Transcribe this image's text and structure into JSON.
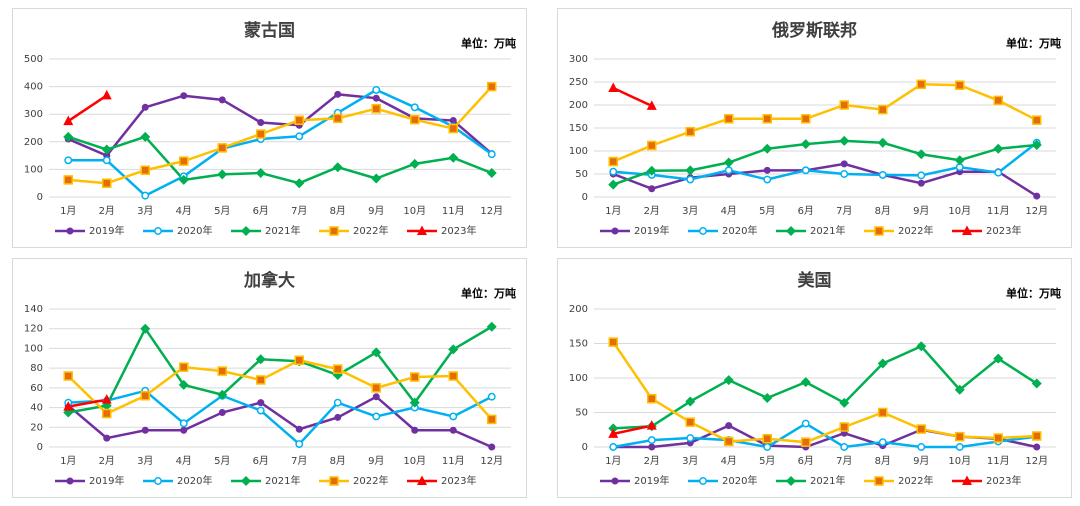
{
  "chart_data": [
    {
      "type": "line",
      "title": "蒙古国",
      "annotation": "单位：万吨",
      "categories": [
        "1月",
        "2月",
        "3月",
        "4月",
        "5月",
        "6月",
        "7月",
        "8月",
        "9月",
        "10月",
        "11月",
        "12月"
      ],
      "ylim": [
        0,
        500
      ],
      "yticks": [
        0,
        100,
        200,
        300,
        400,
        500
      ],
      "grid": true,
      "series": [
        {
          "name": "2019年",
          "color": "#7030a0",
          "marker": "circle",
          "values": [
            210,
            150,
            325,
            367,
            352,
            270,
            260,
            372,
            358,
            285,
            277,
            157
          ]
        },
        {
          "name": "2020年",
          "color": "#00b0f0",
          "marker": "open-circle",
          "values": [
            133,
            133,
            5,
            75,
            175,
            210,
            220,
            305,
            388,
            325,
            255,
            155
          ]
        },
        {
          "name": "2021年",
          "color": "#00b050",
          "marker": "diamond",
          "values": [
            218,
            172,
            218,
            62,
            82,
            87,
            50,
            108,
            67,
            120,
            142,
            87
          ]
        },
        {
          "name": "2022年",
          "color": "#ffc000",
          "marker": "square",
          "values": [
            62,
            50,
            97,
            130,
            178,
            228,
            278,
            285,
            320,
            280,
            248,
            400
          ]
        },
        {
          "name": "2023年",
          "color": "#ff0000",
          "marker": "triangle",
          "values": [
            275,
            368,
            null,
            null,
            null,
            null,
            null,
            null,
            null,
            null,
            null,
            null
          ]
        }
      ]
    },
    {
      "type": "line",
      "title": "俄罗斯联邦",
      "annotation": "单位：万吨",
      "categories": [
        "1月",
        "2月",
        "3月",
        "4月",
        "5月",
        "6月",
        "7月",
        "8月",
        "9月",
        "10月",
        "11月",
        "12月"
      ],
      "ylim": [
        0,
        300
      ],
      "yticks": [
        0,
        50,
        100,
        150,
        200,
        250,
        300
      ],
      "grid": true,
      "series": [
        {
          "name": "2019年",
          "color": "#7030a0",
          "marker": "circle",
          "values": [
            50,
            18,
            42,
            50,
            58,
            58,
            72,
            48,
            30,
            55,
            55,
            2
          ]
        },
        {
          "name": "2020年",
          "color": "#00b0f0",
          "marker": "open-circle",
          "values": [
            55,
            48,
            38,
            58,
            38,
            58,
            50,
            48,
            47,
            65,
            53,
            118
          ]
        },
        {
          "name": "2021年",
          "color": "#00b050",
          "marker": "diamond",
          "values": [
            27,
            57,
            58,
            75,
            105,
            115,
            122,
            118,
            93,
            80,
            105,
            113
          ]
        },
        {
          "name": "2022年",
          "color": "#ffc000",
          "marker": "square",
          "values": [
            77,
            112,
            142,
            170,
            170,
            170,
            200,
            190,
            245,
            243,
            210,
            167
          ]
        },
        {
          "name": "2023年",
          "color": "#ff0000",
          "marker": "triangle",
          "values": [
            237,
            198,
            null,
            null,
            null,
            null,
            null,
            null,
            null,
            null,
            null,
            null
          ]
        }
      ]
    },
    {
      "type": "line",
      "title": "加拿大",
      "annotation": "单位：万吨",
      "categories": [
        "1月",
        "2月",
        "3月",
        "4月",
        "5月",
        "6月",
        "7月",
        "8月",
        "9月",
        "10月",
        "11月",
        "12月"
      ],
      "ylim": [
        0,
        140
      ],
      "yticks": [
        0,
        20,
        40,
        60,
        80,
        100,
        120,
        140
      ],
      "grid": true,
      "series": [
        {
          "name": "2019年",
          "color": "#7030a0",
          "marker": "circle",
          "values": [
            42,
            9,
            17,
            17,
            35,
            45,
            18,
            30,
            51,
            17,
            17,
            0
          ]
        },
        {
          "name": "2020年",
          "color": "#00b0f0",
          "marker": "open-circle",
          "values": [
            45,
            47,
            57,
            24,
            52,
            37,
            3,
            45,
            31,
            40,
            31,
            51
          ]
        },
        {
          "name": "2021年",
          "color": "#00b050",
          "marker": "diamond",
          "values": [
            35,
            42,
            120,
            63,
            53,
            89,
            87,
            73,
            96,
            45,
            99,
            122
          ]
        },
        {
          "name": "2022年",
          "color": "#ffc000",
          "marker": "square",
          "values": [
            72,
            34,
            52,
            81,
            77,
            68,
            88,
            79,
            60,
            71,
            72,
            28
          ]
        },
        {
          "name": "2023年",
          "color": "#ff0000",
          "marker": "triangle",
          "values": [
            41,
            48,
            null,
            null,
            null,
            null,
            null,
            null,
            null,
            null,
            null,
            null
          ]
        }
      ]
    },
    {
      "type": "line",
      "title": "美国",
      "annotation": "单位：万吨",
      "categories": [
        "1月",
        "2月",
        "3月",
        "4月",
        "5月",
        "6月",
        "7月",
        "8月",
        "9月",
        "10月",
        "11月",
        "12月"
      ],
      "ylim": [
        0,
        200
      ],
      "yticks": [
        0,
        50,
        100,
        150,
        200
      ],
      "grid": true,
      "series": [
        {
          "name": "2019年",
          "color": "#7030a0",
          "marker": "circle",
          "values": [
            0,
            0,
            6,
            31,
            2,
            0,
            20,
            2,
            25,
            15,
            12,
            0
          ]
        },
        {
          "name": "2020年",
          "color": "#00b0f0",
          "marker": "open-circle",
          "values": [
            0,
            10,
            13,
            10,
            0,
            34,
            0,
            7,
            0,
            0,
            8,
            15
          ]
        },
        {
          "name": "2021年",
          "color": "#00b050",
          "marker": "diamond",
          "values": [
            27,
            30,
            66,
            97,
            71,
            94,
            64,
            121,
            146,
            83,
            128,
            92
          ]
        },
        {
          "name": "2022年",
          "color": "#ffc000",
          "marker": "square",
          "values": [
            152,
            70,
            36,
            8,
            12,
            7,
            29,
            50,
            26,
            15,
            13,
            16
          ]
        },
        {
          "name": "2023年",
          "color": "#ff0000",
          "marker": "triangle",
          "values": [
            19,
            31,
            null,
            null,
            null,
            null,
            null,
            null,
            null,
            null,
            null,
            null
          ]
        }
      ]
    }
  ]
}
